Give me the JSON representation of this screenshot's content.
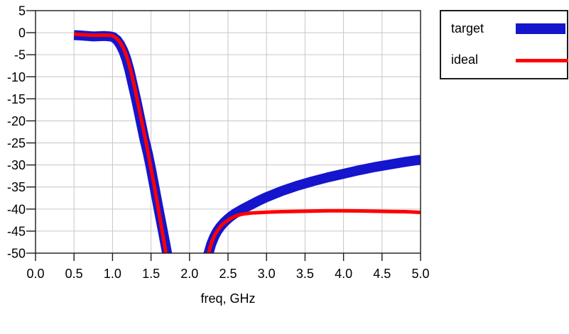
{
  "chart_data": {
    "type": "line",
    "title": "",
    "xlabel": "freq, GHz",
    "ylabel": "",
    "xlim": [
      0.0,
      5.0
    ],
    "ylim": [
      -50,
      5
    ],
    "x_tick_labels": [
      "0.0",
      "0.5",
      "1.0",
      "1.5",
      "2.0",
      "2.5",
      "3.0",
      "3.5",
      "4.0",
      "4.5",
      "5.0"
    ],
    "y_tick_labels": [
      "5",
      "0",
      "-5",
      "-10",
      "-15",
      "-20",
      "-25",
      "-30",
      "-35",
      "-40",
      "-45",
      "-50"
    ],
    "grid": true,
    "grid_color": "#C6C6C6",
    "axis_color": "#1A1A1A",
    "background_color": "#FFFFFF",
    "legend_position": "outside-top-right",
    "series": [
      {
        "name": "target",
        "color": "#1515CD",
        "line_width": 14,
        "points": [
          [
            0.5,
            -0.55
          ],
          [
            0.6,
            -0.65
          ],
          [
            0.75,
            -0.85
          ],
          [
            0.9,
            -0.75
          ],
          [
            0.97,
            -0.85
          ],
          [
            1.01,
            -1.0
          ],
          [
            1.06,
            -1.7
          ],
          [
            1.1,
            -2.7
          ],
          [
            1.14,
            -4.1
          ],
          [
            1.18,
            -6.0
          ],
          [
            1.22,
            -8.5
          ],
          [
            1.26,
            -11.6
          ],
          [
            1.31,
            -15.4
          ],
          [
            1.36,
            -19.6
          ],
          [
            1.41,
            -23.8
          ],
          [
            1.46,
            -27.5
          ],
          [
            1.5,
            -30.9
          ],
          [
            1.55,
            -35.5
          ],
          [
            1.6,
            -40.1
          ],
          [
            1.655,
            -45.1
          ],
          [
            1.71,
            -50.2
          ],
          [
            1.75,
            -54.0
          ],
          [
            2.19,
            -54.0
          ],
          [
            2.24,
            -50.5
          ],
          [
            2.28,
            -48.0
          ],
          [
            2.32,
            -46.3
          ],
          [
            2.36,
            -45.0
          ],
          [
            2.4,
            -44.0
          ],
          [
            2.45,
            -43.0
          ],
          [
            2.5,
            -42.2
          ],
          [
            2.55,
            -41.5
          ],
          [
            2.6,
            -40.9
          ],
          [
            2.7,
            -39.9
          ],
          [
            2.8,
            -39.0
          ],
          [
            2.9,
            -38.1
          ],
          [
            3.0,
            -37.3
          ],
          [
            3.2,
            -35.9
          ],
          [
            3.4,
            -34.7
          ],
          [
            3.6,
            -33.7
          ],
          [
            3.8,
            -32.8
          ],
          [
            4.0,
            -32.0
          ],
          [
            4.2,
            -31.2
          ],
          [
            4.4,
            -30.5
          ],
          [
            4.6,
            -29.9
          ],
          [
            4.8,
            -29.3
          ],
          [
            5.0,
            -28.8
          ]
        ]
      },
      {
        "name": "ideal",
        "color": "#FF0000",
        "line_width": 5,
        "points": [
          [
            0.5,
            -0.35
          ],
          [
            0.6,
            -0.45
          ],
          [
            0.75,
            -0.6
          ],
          [
            0.9,
            -0.55
          ],
          [
            0.97,
            -0.6
          ],
          [
            1.0,
            -0.7
          ],
          [
            1.05,
            -1.2
          ],
          [
            1.09,
            -2.0
          ],
          [
            1.13,
            -3.1
          ],
          [
            1.17,
            -4.7
          ],
          [
            1.21,
            -6.8
          ],
          [
            1.25,
            -9.5
          ],
          [
            1.3,
            -13.4
          ],
          [
            1.35,
            -17.6
          ],
          [
            1.4,
            -21.9
          ],
          [
            1.45,
            -26.1
          ],
          [
            1.49,
            -29.8
          ],
          [
            1.54,
            -34.5
          ],
          [
            1.59,
            -39.5
          ],
          [
            1.64,
            -44.5
          ],
          [
            1.69,
            -49.6
          ],
          [
            1.72,
            -52.5
          ],
          [
            2.2,
            -52.5
          ],
          [
            2.25,
            -49.8
          ],
          [
            2.29,
            -47.4
          ],
          [
            2.33,
            -45.8
          ],
          [
            2.37,
            -44.7
          ],
          [
            2.41,
            -43.8
          ],
          [
            2.46,
            -43.0
          ],
          [
            2.51,
            -42.4
          ],
          [
            2.56,
            -41.9
          ],
          [
            2.61,
            -41.5
          ],
          [
            2.7,
            -41.1
          ],
          [
            2.8,
            -40.9
          ],
          [
            3.0,
            -40.7
          ],
          [
            3.2,
            -40.6
          ],
          [
            3.5,
            -40.5
          ],
          [
            3.8,
            -40.4
          ],
          [
            4.0,
            -40.4
          ],
          [
            4.3,
            -40.45
          ],
          [
            4.6,
            -40.55
          ],
          [
            4.8,
            -40.6
          ],
          [
            5.0,
            -40.75
          ]
        ]
      }
    ]
  }
}
